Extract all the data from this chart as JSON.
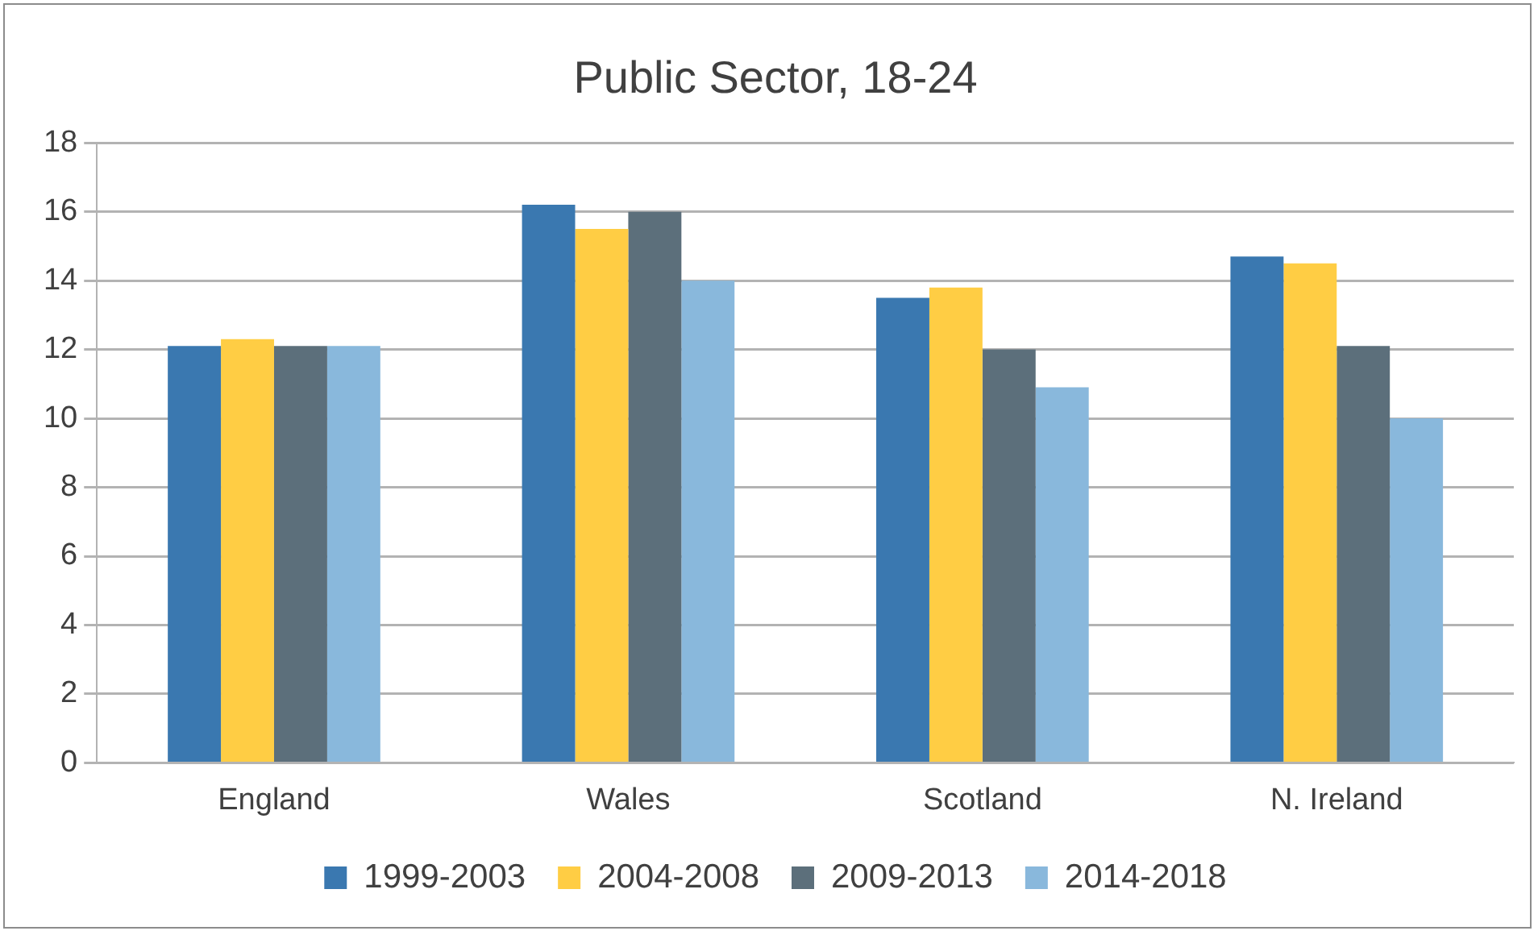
{
  "chart_data": {
    "type": "bar",
    "title": "Public Sector, 18-24",
    "categories": [
      "England",
      "Wales",
      "Scotland",
      "N. Ireland"
    ],
    "series": [
      {
        "name": "1999-2003",
        "color": "#3a78b0",
        "values": [
          12.1,
          16.2,
          13.5,
          14.7
        ]
      },
      {
        "name": "2004-2008",
        "color": "#ffcd44",
        "values": [
          12.3,
          15.5,
          13.8,
          14.5
        ]
      },
      {
        "name": "2009-2013",
        "color": "#5c6f7b",
        "values": [
          12.1,
          16.0,
          12.0,
          12.1
        ]
      },
      {
        "name": "2014-2018",
        "color": "#89b8dc",
        "values": [
          12.1,
          14.0,
          10.9,
          10.0
        ]
      }
    ],
    "ylim": [
      0,
      18
    ],
    "yticks": [
      0,
      2,
      4,
      6,
      8,
      10,
      12,
      14,
      16,
      18
    ],
    "grid": "y",
    "legend": "bottom"
  }
}
